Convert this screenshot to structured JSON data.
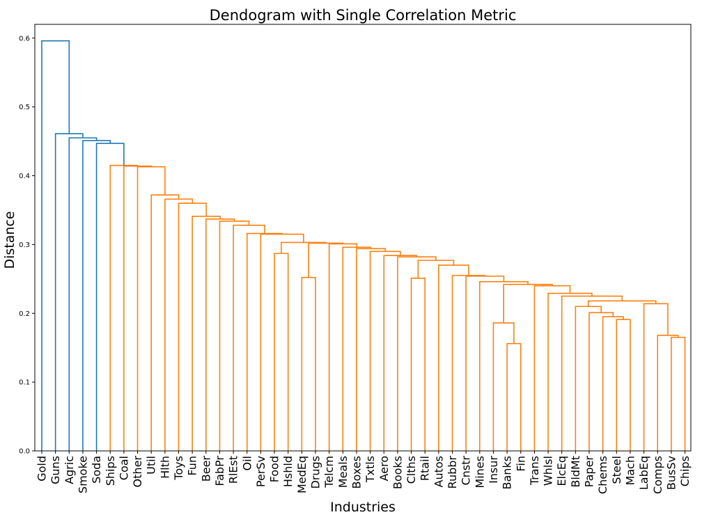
{
  "chart_data": {
    "type": "dendrogram",
    "title": "Dendogram with Single Correlation Metric",
    "xlabel": "Industries",
    "ylabel": "Distance",
    "ylim": [
      0,
      0.62
    ],
    "yticks": [
      "0.0",
      "0.1",
      "0.2",
      "0.3",
      "0.4",
      "0.5",
      "0.6"
    ],
    "ytick_values": [
      0,
      0.1,
      0.2,
      0.3,
      0.4,
      0.5,
      0.6
    ],
    "grid": false,
    "colors": {
      "top_cluster": "#1f77b4",
      "main_cluster": "#ff7f0e"
    },
    "leaves": [
      "Gold",
      "Guns",
      "Agric",
      "Smoke",
      "Soda",
      "Ships",
      "Coal",
      "Other",
      "Util",
      "Hlth",
      "Toys",
      "Fun",
      "Beer",
      "FabPr",
      "RlEst",
      "Oil",
      "PerSv",
      "Food",
      "Hshld",
      "MedEq",
      "Drugs",
      "Telcm",
      "Meals",
      "Boxes",
      "Txtls",
      "Aero",
      "Books",
      "Clths",
      "Rtail",
      "Autos",
      "Rubbr",
      "Cnstr",
      "Mines",
      "Insur",
      "Banks",
      "Fin",
      "Trans",
      "Whlsl",
      "ElcEq",
      "BldMt",
      "Paper",
      "Chems",
      "Steel",
      "Mach",
      "LabEq",
      "Comps",
      "BusSv",
      "Chips"
    ],
    "merges": [
      {
        "a": "Banks",
        "b": "Fin",
        "h": 0.156,
        "color": "main_cluster"
      },
      {
        "a": "BusSv",
        "b": "Chips",
        "h": 0.165,
        "color": "main_cluster"
      },
      {
        "a": "Comps",
        "b": 1,
        "h": 0.168,
        "color": "main_cluster"
      },
      {
        "a": "Insur",
        "b": 0,
        "h": 0.186,
        "color": "main_cluster"
      },
      {
        "a": "Steel",
        "b": "Mach",
        "h": 0.191,
        "color": "main_cluster"
      },
      {
        "a": "Chems",
        "b": 4,
        "h": 0.195,
        "color": "main_cluster"
      },
      {
        "a": "Paper",
        "b": 5,
        "h": 0.201,
        "color": "main_cluster"
      },
      {
        "a": "BldMt",
        "b": 6,
        "h": 0.21,
        "color": "main_cluster"
      },
      {
        "a": "LabEq",
        "b": 2,
        "h": 0.214,
        "color": "main_cluster"
      },
      {
        "a": 7,
        "b": 8,
        "h": 0.218,
        "color": "main_cluster"
      },
      {
        "a": "ElcEq",
        "b": 9,
        "h": 0.225,
        "color": "main_cluster"
      },
      {
        "a": "Whlsl",
        "b": 10,
        "h": 0.229,
        "color": "main_cluster"
      },
      {
        "a": "Trans",
        "b": 11,
        "h": 0.24,
        "color": "main_cluster"
      },
      {
        "a": 3,
        "b": 12,
        "h": 0.242,
        "color": "main_cluster"
      },
      {
        "a": "Mines",
        "b": 13,
        "h": 0.246,
        "color": "main_cluster"
      },
      {
        "a": "MedEq",
        "b": "Drugs",
        "h": 0.252,
        "color": "main_cluster"
      },
      {
        "a": "Clths",
        "b": "Rtail",
        "h": 0.251,
        "color": "main_cluster"
      },
      {
        "a": "Cnstr",
        "b": 14,
        "h": 0.254,
        "color": "main_cluster"
      },
      {
        "a": "Rubbr",
        "b": 17,
        "h": 0.255,
        "color": "main_cluster"
      },
      {
        "a": "Autos",
        "b": 18,
        "h": 0.27,
        "color": "main_cluster"
      },
      {
        "a": 16,
        "b": 19,
        "h": 0.277,
        "color": "main_cluster"
      },
      {
        "a": "Books",
        "b": 20,
        "h": 0.282,
        "color": "main_cluster"
      },
      {
        "a": "Aero",
        "b": 21,
        "h": 0.284,
        "color": "main_cluster"
      },
      {
        "a": "Food",
        "b": "Hshld",
        "h": 0.287,
        "color": "main_cluster"
      },
      {
        "a": "Txtls",
        "b": 22,
        "h": 0.29,
        "color": "main_cluster"
      },
      {
        "a": "Boxes",
        "b": 24,
        "h": 0.294,
        "color": "main_cluster"
      },
      {
        "a": "Meals",
        "b": 25,
        "h": 0.296,
        "color": "main_cluster"
      },
      {
        "a": "Telcm",
        "b": 26,
        "h": 0.301,
        "color": "main_cluster"
      },
      {
        "a": 15,
        "b": 27,
        "h": 0.302,
        "color": "main_cluster"
      },
      {
        "a": 23,
        "b": 28,
        "h": 0.303,
        "color": "main_cluster"
      },
      {
        "a": "PerSv",
        "b": 29,
        "h": 0.315,
        "color": "main_cluster"
      },
      {
        "a": "Oil",
        "b": 30,
        "h": 0.316,
        "color": "main_cluster"
      },
      {
        "a": "RlEst",
        "b": 31,
        "h": 0.328,
        "color": "main_cluster"
      },
      {
        "a": "FabPr",
        "b": 32,
        "h": 0.334,
        "color": "main_cluster"
      },
      {
        "a": "Beer",
        "b": 33,
        "h": 0.337,
        "color": "main_cluster"
      },
      {
        "a": "Fun",
        "b": 34,
        "h": 0.341,
        "color": "main_cluster"
      },
      {
        "a": "Toys",
        "b": 35,
        "h": 0.36,
        "color": "main_cluster"
      },
      {
        "a": "Hlth",
        "b": 36,
        "h": 0.366,
        "color": "main_cluster"
      },
      {
        "a": "Util",
        "b": 37,
        "h": 0.372,
        "color": "main_cluster"
      },
      {
        "a": "Other",
        "b": 38,
        "h": 0.413,
        "color": "main_cluster"
      },
      {
        "a": "Coal",
        "b": 39,
        "h": 0.414,
        "color": "main_cluster"
      },
      {
        "a": "Ships",
        "b": 40,
        "h": 0.415,
        "color": "main_cluster"
      },
      {
        "a": "Soda",
        "b": 41,
        "h": 0.447,
        "color": "top_cluster"
      },
      {
        "a": "Smoke",
        "b": 42,
        "h": 0.451,
        "color": "top_cluster"
      },
      {
        "a": "Agric",
        "b": 43,
        "h": 0.455,
        "color": "top_cluster"
      },
      {
        "a": "Guns",
        "b": 44,
        "h": 0.461,
        "color": "top_cluster"
      },
      {
        "a": "Gold",
        "b": 45,
        "h": 0.596,
        "color": "top_cluster"
      }
    ]
  }
}
